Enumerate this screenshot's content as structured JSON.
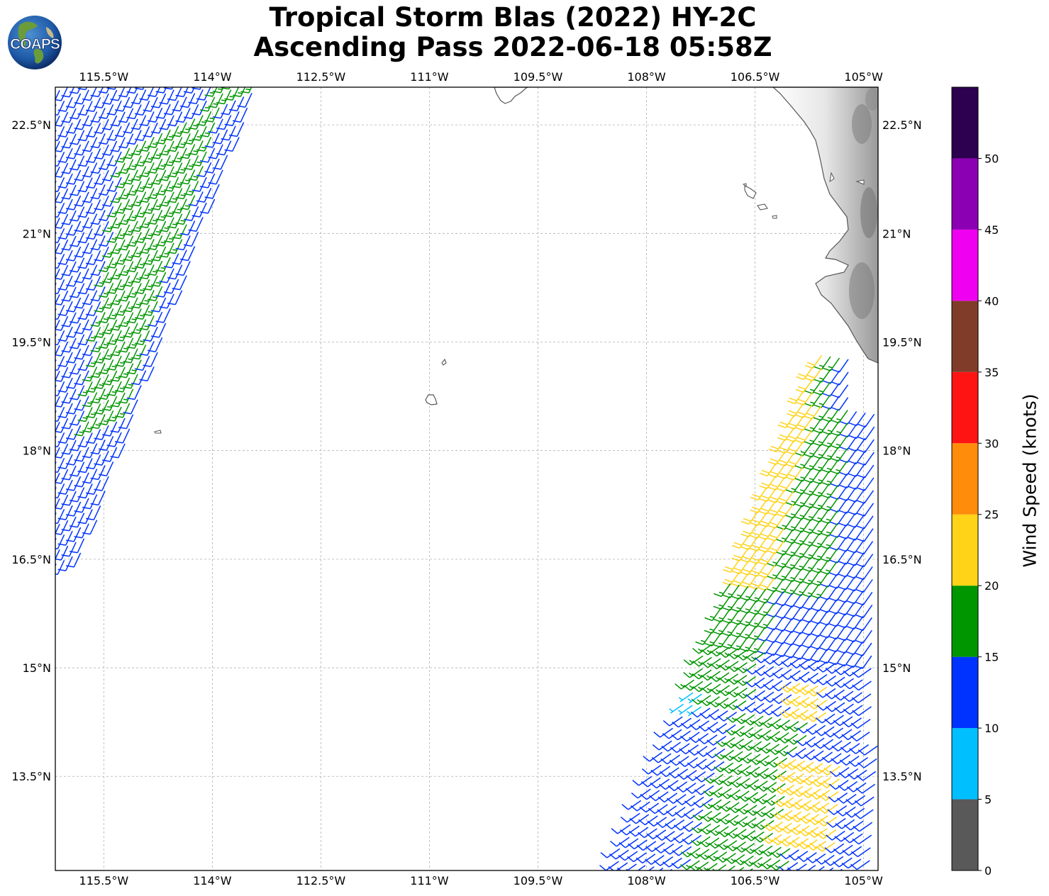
{
  "title": {
    "line1": "Tropical Storm Blas (2022) HY-2C",
    "line2": "Ascending Pass 2022-06-18 05:58Z"
  },
  "logo": {
    "text": "COAPS"
  },
  "map": {
    "lon_range": [
      -116.17,
      -104.8
    ],
    "lat_range": [
      12.2,
      23.02
    ],
    "lon_ticks": [
      "115.5°W",
      "114°W",
      "112.5°W",
      "111°W",
      "109.5°W",
      "108°W",
      "106.5°W",
      "105°W"
    ],
    "lon_tick_values": [
      -115.5,
      -114,
      -112.5,
      -111,
      -109.5,
      -108,
      -106.5,
      -105
    ],
    "lat_ticks": [
      "13.5°N",
      "15°N",
      "16.5°N",
      "18°N",
      "19.5°N",
      "21°N",
      "22.5°N"
    ],
    "lat_tick_values": [
      13.5,
      15,
      16.5,
      18,
      19.5,
      21,
      22.5
    ],
    "grid": true,
    "coastline_color": "#555555",
    "terrain_shading": "grayscale"
  },
  "colorbar": {
    "label": "Wind Speed (knots)",
    "tick_labels": [
      "0",
      "5",
      "10",
      "15",
      "20",
      "25",
      "30",
      "35",
      "40",
      "45",
      "50"
    ],
    "bins": [
      {
        "min": 0,
        "max": 5,
        "color": "#595959"
      },
      {
        "min": 5,
        "max": 10,
        "color": "#00bfff"
      },
      {
        "min": 10,
        "max": 15,
        "color": "#0033ff"
      },
      {
        "min": 15,
        "max": 20,
        "color": "#009600"
      },
      {
        "min": 20,
        "max": 25,
        "color": "#ffd317"
      },
      {
        "min": 25,
        "max": 30,
        "color": "#ff8c0a"
      },
      {
        "min": 30,
        "max": 35,
        "color": "#ff1414"
      },
      {
        "min": 35,
        "max": 40,
        "color": "#803c28"
      },
      {
        "min": 40,
        "max": 45,
        "color": "#f000f0"
      },
      {
        "min": 45,
        "max": 50,
        "color": "#8c00b4"
      },
      {
        "min": 50,
        "max": 55,
        "color": "#2d0050"
      }
    ]
  },
  "wind_swaths": [
    {
      "name": "west-swath",
      "edge_left_lat": [
        16.4,
        23.05
      ],
      "edge_right_lat": [
        17.8,
        23.05
      ],
      "edge_left_lon": [
        -116.2,
        -116.2
      ],
      "edge_right_lon": [
        -115.5,
        -113.2
      ],
      "dominant_direction_deg": 200,
      "speed_range_kt": [
        10,
        19
      ]
    },
    {
      "name": "east-swath",
      "west_boundary": [
        [
          -107.5,
          19.5
        ],
        [
          -108.6,
          15.2
        ],
        [
          -109.2,
          13.5
        ],
        [
          -109.5,
          12.2
        ]
      ],
      "east_boundary": [
        [
          -104.8,
          12.2
        ],
        [
          -104.8,
          18.7
        ],
        [
          -106.0,
          19.4
        ]
      ],
      "dominant_direction_deg": 225,
      "speed_range_kt": [
        8,
        24
      ]
    }
  ]
}
